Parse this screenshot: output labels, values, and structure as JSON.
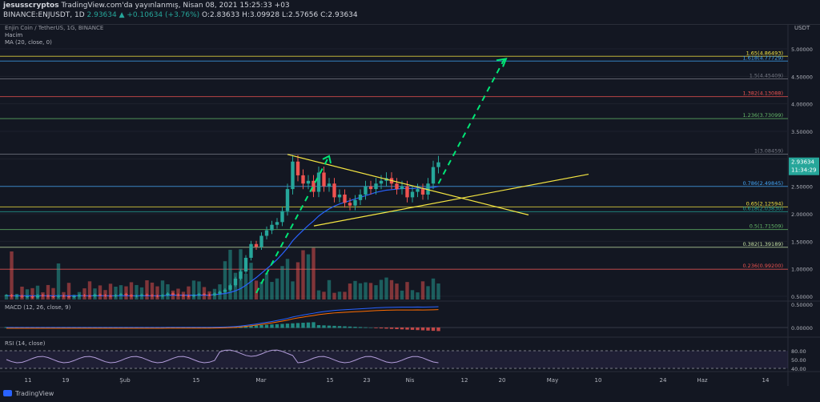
{
  "header": {
    "author": "jesusscryptos",
    "published": "TradingView.com'da yayınlanmış, Nisan 08, 2021 15:25:33 +03",
    "symbol_line": "BINANCE:ENJUSDT, 1D",
    "last": "2.93634",
    "change": "▲ +0.10634 (+3.76%)",
    "ohlc": "O:2.83633 H:3.09928 L:2.57656 C:2.93634"
  },
  "chart_title": "Enjin Coin / TetherUS, 1G, BINANCE",
  "currency": "USDT",
  "indicators": {
    "volume": "Hacim",
    "ma": "MA (20, close, 0)",
    "macd": "MACD (12, 26, close, 9)",
    "rsi": "RSI (14, close)"
  },
  "price_badge": {
    "value": "2.93634",
    "countdown": "11:34:29"
  },
  "footer_brand": "TradingView",
  "colors": {
    "up": "#26a69a",
    "down": "#ef5350",
    "ma": "#2962ff",
    "arrow": "#00e676",
    "triangle": "#f5e642"
  },
  "chart_data": {
    "type": "candlestick",
    "y_axis_ticks": [
      "5.00000",
      "4.50000",
      "4.00000",
      "3.50000",
      "3.00000",
      "2.50000",
      "2.00000",
      "1.50000",
      "1.00000",
      "0.50000"
    ],
    "x_axis_ticks": [
      "11",
      "19",
      "Şub",
      "15",
      "Mar",
      "15",
      "23",
      "Nis",
      "12",
      "20",
      "May",
      "10",
      "24",
      "Haz",
      "14"
    ],
    "macd_ticks": [
      "0.50000",
      "0.00000"
    ],
    "rsi_ticks": [
      "80.00",
      "50.00",
      "40.00"
    ],
    "fib_levels": [
      {
        "label": "1.65(4.86493)",
        "value": 4.86493,
        "color": "#f5e642"
      },
      {
        "label": "1.618(4.77729)",
        "value": 4.77729,
        "color": "#42a5f5"
      },
      {
        "label": "1.5(4.45409)",
        "value": 4.45409,
        "color": "#787b86"
      },
      {
        "label": "1.382(4.13088)",
        "value": 4.13088,
        "color": "#ef5350"
      },
      {
        "label": "1.236(3.73099)",
        "value": 3.73099,
        "color": "#66bb6a"
      },
      {
        "label": "1(3.08459)",
        "value": 3.08459,
        "color": "#787b86"
      },
      {
        "label": "0.786(2.49845)",
        "value": 2.49845,
        "color": "#42a5f5"
      },
      {
        "label": "0.65(2.12594)",
        "value": 2.12594,
        "color": "#f5e642"
      },
      {
        "label": "0.618(2.03830)",
        "value": 2.0383,
        "color": "#26a69a"
      },
      {
        "label": "0.5(1.71509)",
        "value": 1.71509,
        "color": "#66bb6a"
      },
      {
        "label": "0.382(1.39189)",
        "value": 1.39189,
        "color": "#c5e1a5"
      },
      {
        "label": "0.236(0.99200)",
        "value": 0.992,
        "color": "#ef5350"
      }
    ],
    "candles_close": [
      0.52,
      0.5,
      0.51,
      0.49,
      0.5,
      0.48,
      0.52,
      0.51,
      0.5,
      0.49,
      0.51,
      0.5,
      0.49,
      0.5,
      0.52,
      0.51,
      0.5,
      0.53,
      0.52,
      0.51,
      0.5,
      0.52,
      0.54,
      0.52,
      0.5,
      0.51,
      0.53,
      0.52,
      0.51,
      0.5,
      0.52,
      0.55,
      0.53,
      0.52,
      0.51,
      0.5,
      0.52,
      0.54,
      0.53,
      0.52,
      0.55,
      0.58,
      0.62,
      0.7,
      0.82,
      0.95,
      1.2,
      1.45,
      1.4,
      1.6,
      1.7,
      1.8,
      1.85,
      2.05,
      2.45,
      2.95,
      2.7,
      2.55,
      2.6,
      2.4,
      2.75,
      2.5,
      2.55,
      2.3,
      2.35,
      2.2,
      2.15,
      2.25,
      2.35,
      2.5,
      2.45,
      2.55,
      2.6,
      2.65,
      2.55,
      2.45,
      2.5,
      2.3,
      2.4,
      2.45,
      2.35,
      2.55,
      2.85,
      2.93634
    ],
    "ma20": [
      0.51,
      0.51,
      0.51,
      0.51,
      0.51,
      0.51,
      0.51,
      0.51,
      0.51,
      0.51,
      0.51,
      0.51,
      0.51,
      0.51,
      0.51,
      0.51,
      0.51,
      0.51,
      0.51,
      0.51,
      0.51,
      0.51,
      0.51,
      0.51,
      0.51,
      0.51,
      0.51,
      0.51,
      0.51,
      0.51,
      0.51,
      0.52,
      0.52,
      0.52,
      0.52,
      0.52,
      0.52,
      0.52,
      0.52,
      0.52,
      0.53,
      0.54,
      0.55,
      0.57,
      0.6,
      0.64,
      0.7,
      0.77,
      0.84,
      0.92,
      1.0,
      1.08,
      1.17,
      1.27,
      1.38,
      1.51,
      1.61,
      1.7,
      1.79,
      1.87,
      1.96,
      2.03,
      2.09,
      2.14,
      2.18,
      2.21,
      2.24,
      2.27,
      2.3,
      2.33,
      2.36,
      2.39,
      2.41,
      2.43,
      2.44,
      2.45,
      2.46,
      2.46,
      2.46,
      2.47,
      2.46,
      2.47,
      2.48,
      2.5
    ]
  }
}
